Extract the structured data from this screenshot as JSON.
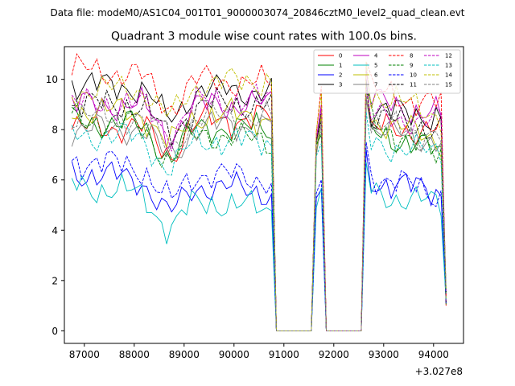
{
  "file_label": "Data file: modeM0/AS1C04_001T01_9000003074_20846cztM0_level2_quad_clean.evt",
  "chart_data": {
    "type": "line",
    "title": "Quadrant 3 module wise count rates with 100.0s bins.",
    "xlabel": "",
    "ylabel": "",
    "x_offset_label": "+3.027e8",
    "xlim": [
      86600,
      94600
    ],
    "ylim": [
      -0.5,
      11.3
    ],
    "x_ticks": [
      87000,
      88000,
      89000,
      90000,
      91000,
      92000,
      93000,
      94000
    ],
    "x_tick_labels": [
      "87000",
      "88000",
      "89000",
      "90000",
      "91000",
      "92000",
      "93000",
      "94000"
    ],
    "y_ticks": [
      0,
      2,
      4,
      6,
      8,
      10
    ],
    "y_tick_labels": [
      "0",
      "2",
      "4",
      "6",
      "8",
      "10"
    ],
    "legend_position": "top-right",
    "segments": [
      {
        "x0": 86750,
        "x1": 90750
      },
      {
        "x0": 91650,
        "x1": 91750
      },
      {
        "x0": 92650,
        "x1": 94250
      }
    ],
    "zero_intervals": [
      [
        90850,
        91550
      ],
      [
        91850,
        92550
      ]
    ],
    "series": [
      {
        "name": "0",
        "color": "#ff0000",
        "dash": "solid",
        "a": [
          8.0,
          8.0,
          8.0
        ],
        "b": [
          8.5,
          8.5,
          8.0
        ],
        "phase": 0.0
      },
      {
        "name": "1",
        "color": "#008000",
        "dash": "solid",
        "a": [
          8.3,
          8.0,
          8.0
        ],
        "b": [
          8.0,
          8.0,
          7.0
        ],
        "phase": 0.7
      },
      {
        "name": "2",
        "color": "#0000ff",
        "dash": "solid",
        "a": [
          6.3,
          6.0,
          6.0
        ],
        "b": [
          5.5,
          6.0,
          5.5
        ],
        "phase": 1.4
      },
      {
        "name": "3",
        "color": "#000000",
        "dash": "solid",
        "a": [
          9.8,
          8.5,
          8.8
        ],
        "b": [
          9.5,
          8.8,
          8.5
        ],
        "phase": 2.1
      },
      {
        "name": "4",
        "color": "#bf00bf",
        "dash": "solid",
        "a": [
          9.0,
          8.5,
          9.2
        ],
        "b": [
          9.0,
          8.8,
          8.5
        ],
        "phase": 2.8
      },
      {
        "name": "5",
        "color": "#00bfbf",
        "dash": "solid",
        "a": [
          5.8,
          5.5,
          5.5
        ],
        "b": [
          4.8,
          5.5,
          5.0
        ],
        "phase": 3.5
      },
      {
        "name": "6",
        "color": "#bfbf00",
        "dash": "solid",
        "a": [
          8.8,
          8.0,
          8.5
        ],
        "b": [
          8.5,
          8.5,
          7.5
        ],
        "phase": 4.2
      },
      {
        "name": "7",
        "color": "#808080",
        "dash": "solid",
        "a": [
          8.0,
          7.8,
          8.0
        ],
        "b": [
          8.2,
          8.0,
          7.5
        ],
        "phase": 4.9
      },
      {
        "name": "8",
        "color": "#ff0000",
        "dash": "dashed",
        "a": [
          10.4,
          8.5,
          9.5
        ],
        "b": [
          9.8,
          9.5,
          9.0
        ],
        "phase": 5.6
      },
      {
        "name": "9",
        "color": "#008000",
        "dash": "dashed",
        "a": [
          8.5,
          8.0,
          8.5
        ],
        "b": [
          7.5,
          8.0,
          6.8
        ],
        "phase": 6.3
      },
      {
        "name": "10",
        "color": "#0000ff",
        "dash": "dashed",
        "a": [
          6.8,
          6.2,
          6.3
        ],
        "b": [
          6.0,
          6.3,
          5.3
        ],
        "phase": 7.0
      },
      {
        "name": "11",
        "color": "#000000",
        "dash": "dashed",
        "a": [
          9.0,
          8.5,
          8.5
        ],
        "b": [
          9.0,
          8.5,
          8.0
        ],
        "phase": 7.7
      },
      {
        "name": "12",
        "color": "#bf00bf",
        "dash": "dashed",
        "a": [
          9.0,
          8.5,
          8.5
        ],
        "b": [
          9.2,
          8.8,
          8.3
        ],
        "phase": 8.4
      },
      {
        "name": "13",
        "color": "#00bfbf",
        "dash": "dashed",
        "a": [
          7.8,
          7.8,
          7.5
        ],
        "b": [
          7.5,
          7.5,
          7.0
        ],
        "phase": 9.1
      },
      {
        "name": "14",
        "color": "#bfbf00",
        "dash": "dashed",
        "a": [
          9.5,
          9.0,
          9.5
        ],
        "b": [
          10.0,
          9.5,
          8.5
        ],
        "phase": 9.8
      },
      {
        "name": "15",
        "color": "#808080",
        "dash": "dashed",
        "a": [
          8.5,
          8.2,
          8.2
        ],
        "b": [
          8.5,
          8.2,
          7.8
        ],
        "phase": 10.5
      }
    ]
  }
}
